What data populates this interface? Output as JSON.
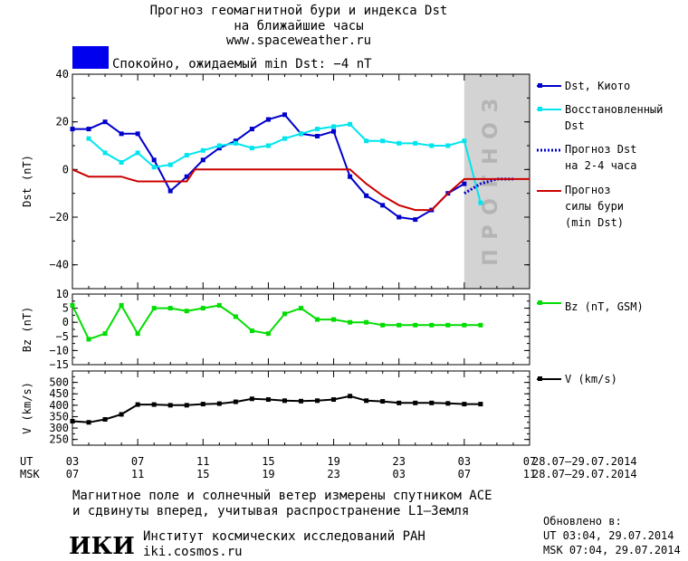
{
  "header": {
    "title_line1": "Прогноз геомагнитной бури и индекса Dst",
    "title_line2": "на ближайшие часы",
    "url": "www.spaceweather.ru",
    "status_text": "Спокойно, ожидаемый min Dst: −4 nT",
    "status_color": "#0000ee"
  },
  "forecast_zone_label": "ПРОГНОЗ",
  "time_axis": {
    "ut_label": "UT",
    "msk_label": "MSK",
    "ut_ticks": [
      "03",
      "07",
      "11",
      "15",
      "19",
      "23",
      "03",
      "07"
    ],
    "msk_ticks": [
      "07",
      "11",
      "15",
      "19",
      "23",
      "03",
      "07",
      "11"
    ],
    "ut_range": "28.07–29.07.2014",
    "msk_range": "28.07–29.07.2014"
  },
  "footer": {
    "note_line1": "Магнитное поле и солнечный ветер измерены спутником ACE",
    "note_line2": "и сдвинуты вперед, учитывая распространение L1–Земля",
    "logo_text": "ИКИ",
    "institute": "Институт космических исследований РАН",
    "site": "iki.cosmos.ru",
    "updated_label": "Обновлено в:",
    "updated_ut": "UT  03:04, 29.07.2014",
    "updated_msk": "MSK 07:04, 29.07.2014"
  },
  "chart_data": [
    {
      "type": "line",
      "ylabel": "Dst (nT)",
      "ylim": [
        -50,
        40
      ],
      "yticks": [
        40,
        20,
        0,
        -20,
        -40
      ],
      "x_unit": "hours after 03 UT 28.07",
      "xlim": [
        0,
        28
      ],
      "forecast_shade_from_hour": 24,
      "series": [
        {
          "name": "Dst, Киото",
          "color": "#0000cc",
          "marker": "square",
          "x": [
            0,
            1,
            2,
            3,
            4,
            5,
            6,
            7,
            8,
            9,
            10,
            11,
            12,
            13,
            14,
            15,
            16,
            17,
            18,
            19,
            20,
            21,
            22,
            23,
            24
          ],
          "values": [
            17,
            17,
            20,
            15,
            15,
            4,
            -9,
            -3,
            4,
            9,
            12,
            17,
            21,
            23,
            15,
            14,
            16,
            -3,
            -11,
            -15,
            -20,
            -21,
            -17,
            -10,
            -6
          ]
        },
        {
          "name": "Восстановленный Dst",
          "color": "#00e5ee",
          "marker": "square",
          "x": [
            1,
            2,
            3,
            4,
            5,
            6,
            7,
            8,
            9,
            10,
            11,
            12,
            13,
            14,
            15,
            16,
            17,
            18,
            19,
            20,
            21,
            22,
            23,
            24,
            25
          ],
          "values": [
            13,
            7,
            3,
            7,
            1,
            2,
            6,
            8,
            10,
            11,
            9,
            10,
            13,
            15,
            17,
            18,
            19,
            12,
            12,
            11,
            11,
            10,
            10,
            12,
            -14
          ]
        },
        {
          "name": "Прогноз Dst на 2-4 часа",
          "color": "#0000cc",
          "dashed": true,
          "x": [
            24,
            25,
            26,
            27
          ],
          "values": [
            -10,
            -6,
            -4,
            -4
          ]
        },
        {
          "name": "Прогноз силы бури (min Dst)",
          "color": "#cc0000",
          "x": [
            0,
            1,
            2,
            3,
            3.5,
            4,
            5,
            6,
            7,
            7.5,
            8,
            9,
            10,
            11,
            12,
            13,
            14,
            15,
            16,
            17,
            18,
            19,
            20,
            21,
            22,
            23,
            24,
            25,
            26,
            27,
            28
          ],
          "values": [
            0,
            -3,
            -3,
            -3,
            -4,
            -5,
            -5,
            -5,
            -5,
            0,
            0,
            0,
            0,
            0,
            0,
            0,
            0,
            0,
            0,
            0,
            -6,
            -11,
            -15,
            -17,
            -17,
            -10,
            -4,
            -4,
            -4,
            -4,
            -4
          ]
        }
      ]
    },
    {
      "type": "line",
      "ylabel": "Bz (nT)",
      "ylim": [
        -15,
        10
      ],
      "yticks": [
        10,
        5,
        0,
        -5,
        -10,
        -15
      ],
      "series": [
        {
          "name": "Bz (nT, GSM)",
          "color": "#00dd00",
          "marker": "square",
          "x": [
            0,
            1,
            2,
            3,
            4,
            5,
            6,
            7,
            8,
            9,
            10,
            11,
            12,
            13,
            14,
            15,
            16,
            17,
            18,
            19,
            20,
            21,
            22,
            23,
            24,
            25
          ],
          "values": [
            6,
            -6,
            -4,
            6,
            -4,
            5,
            5,
            4,
            5,
            6,
            2,
            -3,
            -4,
            3,
            5,
            1,
            1,
            0,
            0,
            -1,
            -1,
            -1,
            -1,
            -1,
            -1,
            -1
          ]
        }
      ]
    },
    {
      "type": "line",
      "ylabel": "V (km/s)",
      "ylim": [
        225,
        550
      ],
      "yticks": [
        500,
        450,
        400,
        350,
        300,
        250
      ],
      "series": [
        {
          "name": "V (km/s)",
          "color": "#000000",
          "marker": "square",
          "x": [
            0,
            1,
            2,
            3,
            4,
            5,
            6,
            7,
            8,
            9,
            10,
            11,
            12,
            13,
            14,
            15,
            16,
            17,
            18,
            19,
            20,
            21,
            22,
            23,
            24,
            25
          ],
          "values": [
            330,
            325,
            338,
            360,
            403,
            403,
            400,
            400,
            405,
            407,
            415,
            428,
            425,
            420,
            418,
            420,
            425,
            440,
            420,
            417,
            410,
            410,
            410,
            408,
            405,
            405
          ]
        }
      ]
    }
  ]
}
